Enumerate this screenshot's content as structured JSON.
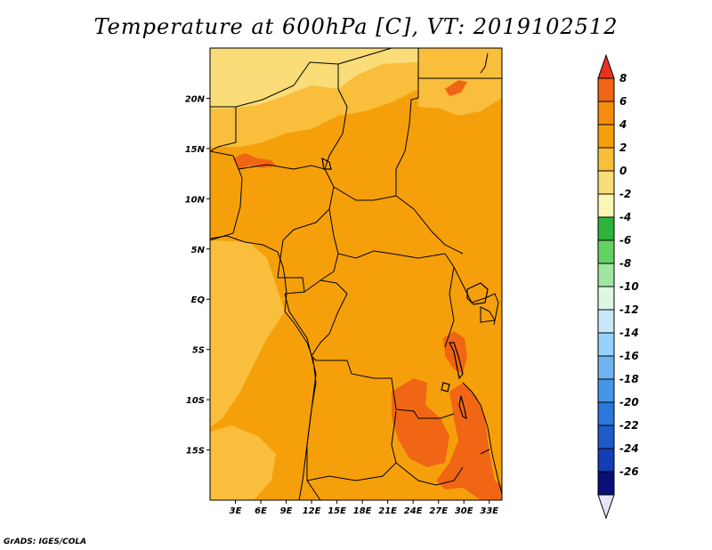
{
  "title": "Temperature at 600hPa [C], VT: 2019102512",
  "credit": "GrADS: IGES/COLA",
  "map": {
    "lon_range": [
      0,
      34.5
    ],
    "lat_range": [
      -20,
      25
    ],
    "lon_ticks": [
      {
        "value": 3,
        "label": "3E"
      },
      {
        "value": 6,
        "label": "6E"
      },
      {
        "value": 9,
        "label": "9E"
      },
      {
        "value": 12,
        "label": "12E"
      },
      {
        "value": 15,
        "label": "15E"
      },
      {
        "value": 18,
        "label": "18E"
      },
      {
        "value": 21,
        "label": "21E"
      },
      {
        "value": 24,
        "label": "24E"
      },
      {
        "value": 27,
        "label": "27E"
      },
      {
        "value": 30,
        "label": "30E"
      },
      {
        "value": 33,
        "label": "33E"
      }
    ],
    "lat_ticks": [
      {
        "value": 20,
        "label": "20N"
      },
      {
        "value": 15,
        "label": "15N"
      },
      {
        "value": 10,
        "label": "10N"
      },
      {
        "value": 5,
        "label": "5N"
      },
      {
        "value": 0,
        "label": "EQ"
      },
      {
        "value": -5,
        "label": "5S"
      },
      {
        "value": -10,
        "label": "10S"
      },
      {
        "value": -15,
        "label": "15S"
      }
    ],
    "base_color": "#f5a00a"
  },
  "colorbar": {
    "labels": [
      "8",
      "6",
      "4",
      "2",
      "0",
      "-2",
      "-4",
      "-6",
      "-8",
      "-10",
      "-12",
      "-14",
      "-16",
      "-18",
      "-20",
      "-22",
      "-24",
      "-26"
    ],
    "colors": [
      "#e8321e",
      "#f06614",
      "#f58c0e",
      "#f5a00a",
      "#f8be3c",
      "#fadc78",
      "#fcf6b4",
      "#2cb43c",
      "#64d264",
      "#a0e6a0",
      "#dcf8e0",
      "#c8e8fa",
      "#96d2fa",
      "#6eb4f0",
      "#4696e6",
      "#2a78dc",
      "#1e5ac8",
      "#143cb4",
      "#0a0f78",
      "#e6e6fa"
    ]
  }
}
